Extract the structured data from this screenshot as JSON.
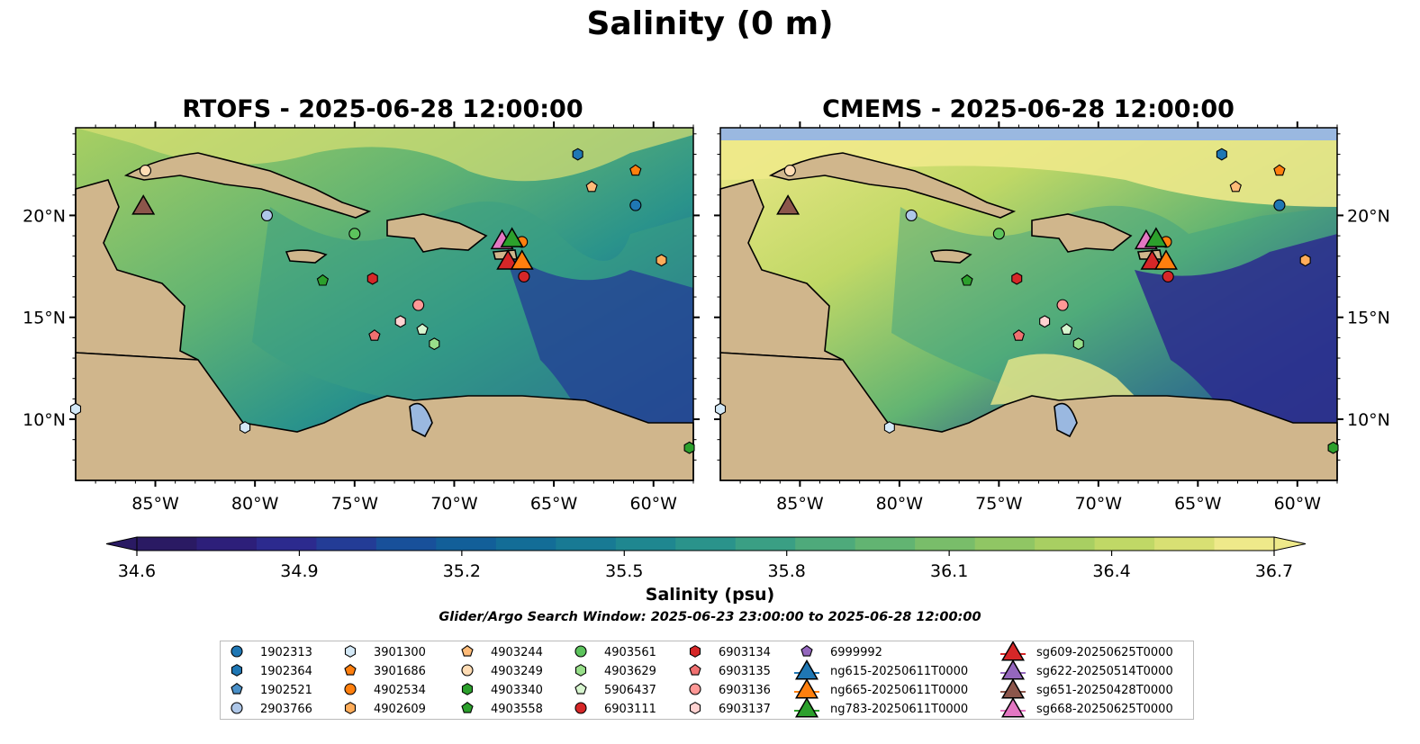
{
  "title": "Salinity (0 m)",
  "panels": [
    {
      "title": "RTOFS - 2025-06-28 12:00:00"
    },
    {
      "title": "CMEMS - 2025-06-28 12:00:00"
    }
  ],
  "axes": {
    "lat_labels": [
      "20°N",
      "15°N",
      "10°N"
    ],
    "lon_labels": [
      "85°W",
      "80°W",
      "75°W",
      "70°W",
      "65°W",
      "60°W"
    ]
  },
  "colorbar": {
    "label": "Salinity (psu)",
    "ticks": [
      "34.6",
      "34.9",
      "35.2",
      "35.5",
      "35.8",
      "36.1",
      "36.4",
      "36.7"
    ],
    "colors": [
      "#2a1a63",
      "#2d1f7a",
      "#2c2a8e",
      "#233c96",
      "#18509a",
      "#125f99",
      "#136d97",
      "#187a94",
      "#1f8790",
      "#2a938b",
      "#3a9f84",
      "#4eaa7b",
      "#62b472",
      "#79bd6a",
      "#90c664",
      "#a8cf62",
      "#c0d866",
      "#d8e073",
      "#eee98a"
    ]
  },
  "search_window": "Glider/Argo Search Window: 2025-06-23 23:00:00 to 2025-06-28 12:00:00",
  "legend": {
    "columns": [
      [
        {
          "label": "1902313",
          "shape": "circle",
          "color": "#1f77b4"
        },
        {
          "label": "1902364",
          "shape": "hexagon",
          "color": "#1f77b4"
        },
        {
          "label": "1902521",
          "shape": "pentagon",
          "color": "#4a90c8"
        },
        {
          "label": "2903766",
          "shape": "circle",
          "color": "#aec7e8"
        }
      ],
      [
        {
          "label": "3901300",
          "shape": "hexagon",
          "color": "#d4e9f7"
        },
        {
          "label": "3901686",
          "shape": "pentagon",
          "color": "#ff7f0e"
        },
        {
          "label": "4902534",
          "shape": "circle",
          "color": "#ff7f0e"
        },
        {
          "label": "4902609",
          "shape": "hexagon",
          "color": "#ffad5a"
        }
      ],
      [
        {
          "label": "4903244",
          "shape": "pentagon",
          "color": "#ffbb78"
        },
        {
          "label": "4903249",
          "shape": "circle",
          "color": "#ffdcb4"
        },
        {
          "label": "4903340",
          "shape": "hexagon",
          "color": "#2ca02c"
        },
        {
          "label": "4903558",
          "shape": "pentagon",
          "color": "#2ca02c"
        }
      ],
      [
        {
          "label": "4903561",
          "shape": "circle",
          "color": "#5cc35c"
        },
        {
          "label": "4903629",
          "shape": "hexagon",
          "color": "#98df8a"
        },
        {
          "label": "5906437",
          "shape": "pentagon",
          "color": "#d7f5cf"
        },
        {
          "label": "6903111",
          "shape": "circle",
          "color": "#d62728"
        }
      ],
      [
        {
          "label": "6903134",
          "shape": "hexagon",
          "color": "#d62728"
        },
        {
          "label": "6903135",
          "shape": "pentagon",
          "color": "#f07070"
        },
        {
          "label": "6903136",
          "shape": "circle",
          "color": "#ff9896"
        },
        {
          "label": "6903137",
          "shape": "hexagon",
          "color": "#ffd2d1"
        }
      ],
      [
        {
          "label": "6999992",
          "shape": "pentagon",
          "color": "#9467bd"
        },
        {
          "label": "ng615-20250611T0000",
          "shape": "triangle",
          "color": "#1f77b4"
        },
        {
          "label": "ng665-20250611T0000",
          "shape": "triangle",
          "color": "#ff7f0e"
        },
        {
          "label": "ng783-20250611T0000",
          "shape": "triangle",
          "color": "#2ca02c"
        }
      ],
      [
        {
          "label": "sg609-20250625T0000",
          "shape": "triangle",
          "color": "#d62728"
        },
        {
          "label": "sg622-20250514T0000",
          "shape": "triangle",
          "color": "#9467bd"
        },
        {
          "label": "sg651-20250428T0000",
          "shape": "triangle",
          "color": "#8c564b"
        },
        {
          "label": "sg668-20250625T0000",
          "shape": "triangle",
          "color": "#e377c2"
        }
      ]
    ]
  },
  "markers": [
    {
      "id": "2903766",
      "shape": "circle",
      "color": "#aec7e8",
      "lon": -79.4,
      "lat": 20.0
    },
    {
      "id": "4903249",
      "shape": "circle",
      "color": "#ffdcb4",
      "lon": -85.5,
      "lat": 22.2
    },
    {
      "id": "4903561",
      "shape": "circle",
      "color": "#5cc35c",
      "lon": -75.0,
      "lat": 19.1
    },
    {
      "id": "4903558",
      "shape": "pentagon",
      "color": "#2ca02c",
      "lon": -76.6,
      "lat": 16.8
    },
    {
      "id": "6903134",
      "shape": "hexagon",
      "color": "#d62728",
      "lon": -74.1,
      "lat": 16.9
    },
    {
      "id": "6903135",
      "shape": "pentagon",
      "color": "#f07070",
      "lon": -74.0,
      "lat": 14.1
    },
    {
      "id": "6903137",
      "shape": "hexagon",
      "color": "#ffd2d1",
      "lon": -72.7,
      "lat": 14.8
    },
    {
      "id": "6903136",
      "shape": "circle",
      "color": "#ff9896",
      "lon": -71.8,
      "lat": 15.6
    },
    {
      "id": "5906437",
      "shape": "pentagon",
      "color": "#d7f5cf",
      "lon": -71.6,
      "lat": 14.4
    },
    {
      "id": "4903629",
      "shape": "hexagon",
      "color": "#98df8a",
      "lon": -71.0,
      "lat": 13.7
    },
    {
      "id": "3901300",
      "shape": "hexagon",
      "color": "#d4e9f7",
      "lon": -80.5,
      "lat": 9.6
    },
    {
      "id": "3901300b",
      "shape": "hexagon",
      "color": "#d4e9f7",
      "lon": -89.0,
      "lat": 10.5
    },
    {
      "id": "4903340",
      "shape": "hexagon",
      "color": "#2ca02c",
      "lon": -58.2,
      "lat": 8.6
    },
    {
      "id": "4902534",
      "shape": "circle",
      "color": "#ff7f0e",
      "lon": -66.6,
      "lat": 18.7
    },
    {
      "id": "6903111",
      "shape": "circle",
      "color": "#d62728",
      "lon": -66.5,
      "lat": 17.0
    },
    {
      "id": "1902364",
      "shape": "hexagon",
      "color": "#1f77b4",
      "lon": -63.8,
      "lat": 23.0
    },
    {
      "id": "4903244",
      "shape": "pentagon",
      "color": "#ffbb78",
      "lon": -63.1,
      "lat": 21.4
    },
    {
      "id": "3901686",
      "shape": "pentagon",
      "color": "#ff7f0e",
      "lon": -60.9,
      "lat": 22.2
    },
    {
      "id": "1902313",
      "shape": "circle",
      "color": "#1f77b4",
      "lon": -60.9,
      "lat": 20.5
    },
    {
      "id": "4902609",
      "shape": "hexagon",
      "color": "#ffad5a",
      "lon": -59.6,
      "lat": 17.8
    },
    {
      "id": "sg668",
      "shape": "triangle",
      "color": "#e377c2",
      "lon": -67.6,
      "lat": 18.8
    },
    {
      "id": "ng783",
      "shape": "triangle",
      "color": "#2ca02c",
      "lon": -67.1,
      "lat": 18.9
    },
    {
      "id": "sg609",
      "shape": "triangle",
      "color": "#d62728",
      "lon": -67.3,
      "lat": 17.8
    },
    {
      "id": "ng665",
      "shape": "triangle",
      "color": "#ff7f0e",
      "lon": -66.6,
      "lat": 17.8
    },
    {
      "id": "sg651",
      "shape": "triangle",
      "color": "#8c564b",
      "lon": -85.6,
      "lat": 20.5
    }
  ]
}
